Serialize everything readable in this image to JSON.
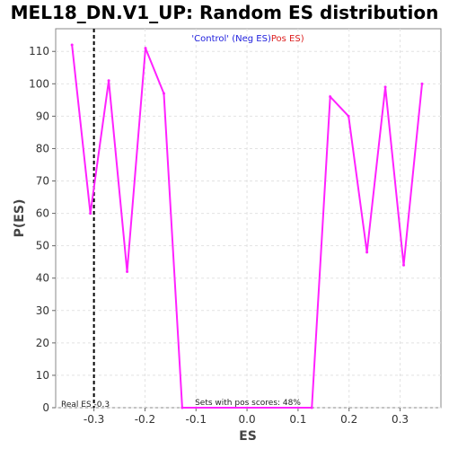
{
  "chart_data": {
    "type": "line",
    "title": "MEL18_DN.V1_UP: Random ES distribution",
    "xlabel": "ES",
    "ylabel": "P(ES)",
    "xlim": [
      -0.375,
      0.38
    ],
    "ylim": [
      0,
      117
    ],
    "x_ticks": [
      -0.3,
      -0.2,
      -0.1,
      0.0,
      0.1,
      0.2,
      0.3
    ],
    "x_tick_labels": [
      "-0.3",
      "-0.2",
      "-0.1",
      "0.0",
      "0.1",
      "0.2",
      "0.3"
    ],
    "y_ticks": [
      0,
      10,
      20,
      30,
      40,
      50,
      60,
      70,
      80,
      90,
      100,
      110
    ],
    "y_tick_labels": [
      "0",
      "10",
      "20",
      "30",
      "40",
      "50",
      "60",
      "70",
      "80",
      "90",
      "100",
      "110"
    ],
    "grid": true,
    "legend": {
      "placement": "top-center",
      "entries": [
        {
          "label": "'Control' (Neg ES)",
          "color": "#2020dd"
        },
        {
          "label": "Pos ES)",
          "color": "#dd2020"
        }
      ]
    },
    "series": [
      {
        "color": "#ff22ff",
        "points": [
          [
            -0.343,
            112
          ],
          [
            -0.307,
            60
          ],
          [
            -0.271,
            101
          ],
          [
            -0.235,
            42
          ],
          [
            -0.199,
            111
          ],
          [
            -0.163,
            97
          ],
          [
            -0.127,
            0
          ],
          [
            0.127,
            0
          ],
          [
            0.163,
            96
          ],
          [
            0.199,
            90
          ],
          [
            0.235,
            48
          ],
          [
            0.271,
            99
          ],
          [
            0.307,
            44
          ],
          [
            0.343,
            100
          ]
        ]
      }
    ],
    "real_es": {
      "value": -0.3,
      "label": "Real ES -0.3",
      "color": "#000000"
    },
    "annotation": "Sets with pos scores: 48%"
  }
}
